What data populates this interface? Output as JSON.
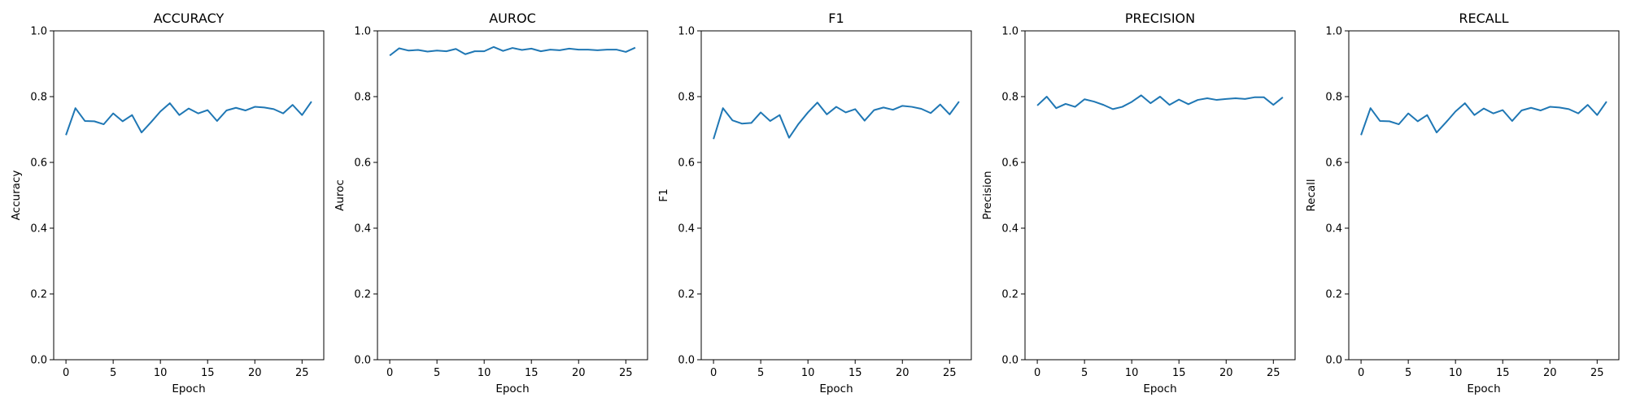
{
  "chart_data": [
    {
      "type": "line",
      "title": "ACCURACY",
      "xlabel": "Epoch",
      "ylabel": "Accuracy",
      "xlim": [
        -1.3,
        27.3
      ],
      "ylim": [
        0,
        1
      ],
      "xticks": [
        0,
        5,
        10,
        15,
        20,
        25
      ],
      "yticks": [
        0.0,
        0.2,
        0.4,
        0.6,
        0.8,
        1.0
      ],
      "grid": false,
      "color": "#1f77b4",
      "x": [
        0,
        1,
        2,
        3,
        4,
        5,
        6,
        7,
        8,
        9,
        10,
        11,
        12,
        13,
        14,
        15,
        16,
        17,
        18,
        19,
        20,
        21,
        22,
        23,
        24,
        25,
        26
      ],
      "y": [
        0.683,
        0.765,
        0.726,
        0.725,
        0.716,
        0.749,
        0.725,
        0.744,
        0.691,
        0.722,
        0.755,
        0.78,
        0.744,
        0.764,
        0.749,
        0.759,
        0.726,
        0.758,
        0.766,
        0.758,
        0.769,
        0.767,
        0.762,
        0.749,
        0.775,
        0.744,
        0.785
      ]
    },
    {
      "type": "line",
      "title": "AUROC",
      "xlabel": "Epoch",
      "ylabel": "Auroc",
      "xlim": [
        -1.3,
        27.3
      ],
      "ylim": [
        0,
        1
      ],
      "xticks": [
        0,
        5,
        10,
        15,
        20,
        25
      ],
      "yticks": [
        0.0,
        0.2,
        0.4,
        0.6,
        0.8,
        1.0
      ],
      "grid": false,
      "color": "#1f77b4",
      "x": [
        0,
        1,
        2,
        3,
        4,
        5,
        6,
        7,
        8,
        9,
        10,
        11,
        12,
        13,
        14,
        15,
        16,
        17,
        18,
        19,
        20,
        21,
        22,
        23,
        24,
        25,
        26
      ],
      "y": [
        0.925,
        0.947,
        0.94,
        0.942,
        0.937,
        0.94,
        0.938,
        0.945,
        0.929,
        0.938,
        0.938,
        0.951,
        0.939,
        0.948,
        0.942,
        0.946,
        0.938,
        0.943,
        0.941,
        0.946,
        0.943,
        0.943,
        0.941,
        0.943,
        0.943,
        0.936,
        0.949
      ]
    },
    {
      "type": "line",
      "title": "F1",
      "xlabel": "Epoch",
      "ylabel": "F1",
      "xlim": [
        -1.3,
        27.3
      ],
      "ylim": [
        0,
        1
      ],
      "xticks": [
        0,
        5,
        10,
        15,
        20,
        25
      ],
      "yticks": [
        0.0,
        0.2,
        0.4,
        0.6,
        0.8,
        1.0
      ],
      "grid": false,
      "color": "#1f77b4",
      "x": [
        0,
        1,
        2,
        3,
        4,
        5,
        6,
        7,
        8,
        9,
        10,
        11,
        12,
        13,
        14,
        15,
        16,
        17,
        18,
        19,
        20,
        21,
        22,
        23,
        24,
        25,
        26
      ],
      "y": [
        0.671,
        0.765,
        0.728,
        0.718,
        0.72,
        0.752,
        0.726,
        0.744,
        0.675,
        0.717,
        0.752,
        0.782,
        0.746,
        0.769,
        0.752,
        0.762,
        0.727,
        0.759,
        0.767,
        0.76,
        0.772,
        0.769,
        0.763,
        0.75,
        0.776,
        0.746,
        0.785
      ]
    },
    {
      "type": "line",
      "title": "PRECISION",
      "xlabel": "Epoch",
      "ylabel": "Precision",
      "xlim": [
        -1.3,
        27.3
      ],
      "ylim": [
        0,
        1
      ],
      "xticks": [
        0,
        5,
        10,
        15,
        20,
        25
      ],
      "yticks": [
        0.0,
        0.2,
        0.4,
        0.6,
        0.8,
        1.0
      ],
      "grid": false,
      "color": "#1f77b4",
      "x": [
        0,
        1,
        2,
        3,
        4,
        5,
        6,
        7,
        8,
        9,
        10,
        11,
        12,
        13,
        14,
        15,
        16,
        17,
        18,
        19,
        20,
        21,
        22,
        23,
        24,
        25,
        26
      ],
      "y": [
        0.773,
        0.8,
        0.765,
        0.778,
        0.769,
        0.792,
        0.785,
        0.775,
        0.762,
        0.769,
        0.784,
        0.804,
        0.78,
        0.8,
        0.775,
        0.791,
        0.777,
        0.79,
        0.795,
        0.79,
        0.793,
        0.795,
        0.793,
        0.798,
        0.798,
        0.775,
        0.798
      ]
    },
    {
      "type": "line",
      "title": "RECALL",
      "xlabel": "Epoch",
      "ylabel": "Recall",
      "xlim": [
        -1.3,
        27.3
      ],
      "ylim": [
        0,
        1
      ],
      "xticks": [
        0,
        5,
        10,
        15,
        20,
        25
      ],
      "yticks": [
        0.0,
        0.2,
        0.4,
        0.6,
        0.8,
        1.0
      ],
      "grid": false,
      "color": "#1f77b4",
      "x": [
        0,
        1,
        2,
        3,
        4,
        5,
        6,
        7,
        8,
        9,
        10,
        11,
        12,
        13,
        14,
        15,
        16,
        17,
        18,
        19,
        20,
        21,
        22,
        23,
        24,
        25,
        26
      ],
      "y": [
        0.683,
        0.765,
        0.726,
        0.725,
        0.716,
        0.749,
        0.725,
        0.744,
        0.691,
        0.722,
        0.755,
        0.78,
        0.744,
        0.764,
        0.749,
        0.759,
        0.726,
        0.758,
        0.766,
        0.758,
        0.769,
        0.767,
        0.762,
        0.749,
        0.775,
        0.744,
        0.785
      ]
    }
  ]
}
